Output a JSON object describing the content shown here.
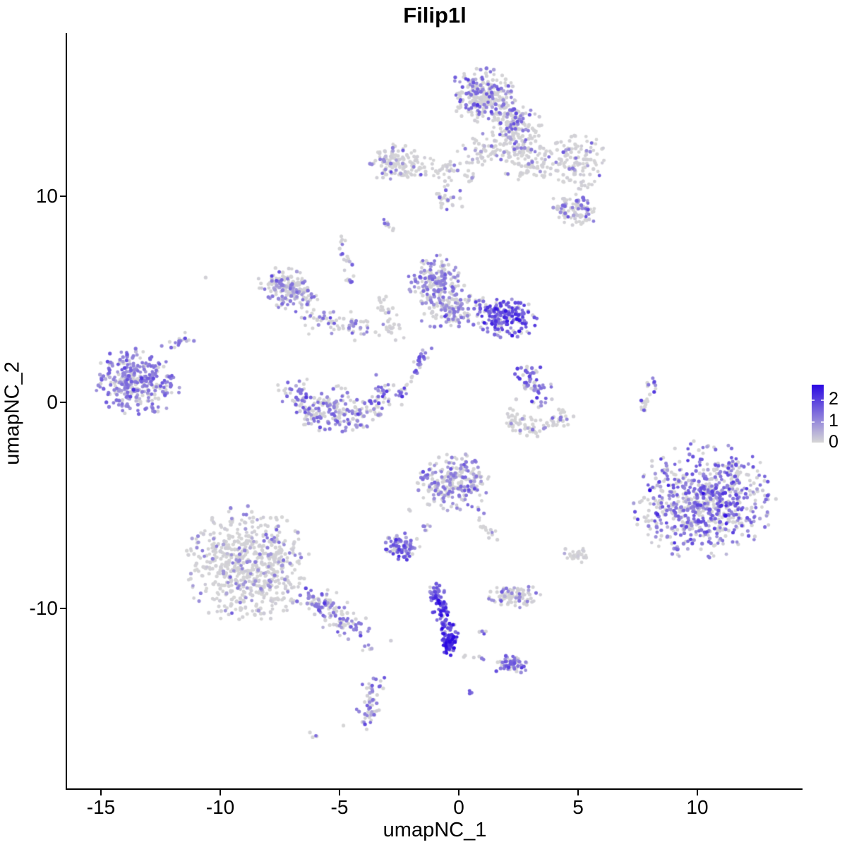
{
  "chart_data": {
    "type": "scatter",
    "subtype": "umap-feature-plot",
    "title": "Filip1l",
    "xlabel": "umapNC_1",
    "ylabel": "umapNC_2",
    "x_ticks": [
      -15,
      -10,
      -5,
      0,
      5,
      10
    ],
    "y_ticks": [
      10,
      0,
      -10
    ],
    "xlim": [
      -16.4,
      14.4
    ],
    "ylim": [
      -18.8,
      17.9
    ],
    "grid": false,
    "legend": {
      "position": "right",
      "ticks": [
        2,
        1,
        0
      ],
      "limit": 2.7
    },
    "color_scale": {
      "low": "#d6d6d6",
      "high": "#2b09e2"
    },
    "point_radius": 2.35,
    "clusters": [
      {
        "id": "top-main-a",
        "type": "blob",
        "cx": 1.0,
        "cy": 14.9,
        "rx": 1.35,
        "ry": 1.25,
        "rot": -35,
        "n": 270,
        "zero": 0.7,
        "t": [
          0.45,
          0.12
        ]
      },
      {
        "id": "top-main-b",
        "type": "blob",
        "cx": 2.35,
        "cy": 13.4,
        "rx": 1.05,
        "ry": 1.0,
        "rot": 0,
        "n": 140,
        "zero": 0.72,
        "t": [
          0.45,
          0.12
        ]
      },
      {
        "id": "top-main-tail",
        "type": "blob",
        "cx": 1.0,
        "cy": 12.3,
        "rx": 1.2,
        "ry": 0.7,
        "rot": 0,
        "n": 50,
        "zero": 0.8,
        "t": [
          0.4,
          0.1
        ]
      },
      {
        "id": "band-left",
        "type": "blob",
        "cx": -2.6,
        "cy": 11.6,
        "rx": 1.15,
        "ry": 0.85,
        "rot": 0,
        "n": 130,
        "zero": 0.86,
        "t": [
          0.4,
          0.1
        ]
      },
      {
        "id": "band-chain",
        "type": "line",
        "x1": -1.6,
        "y1": 11.4,
        "x2": 0.8,
        "y2": 11.2,
        "jitter": 0.28,
        "n": 45,
        "zero": 0.85,
        "t": [
          0.4,
          0.1
        ]
      },
      {
        "id": "band-mid-dots",
        "type": "blob",
        "cx": -0.5,
        "cy": 9.9,
        "rx": 0.8,
        "ry": 0.7,
        "rot": 0,
        "n": 25,
        "zero": 0.8,
        "t": [
          0.4,
          0.1
        ]
      },
      {
        "id": "band-right-a",
        "type": "blob",
        "cx": 2.9,
        "cy": 11.9,
        "rx": 1.35,
        "ry": 1.15,
        "rot": 0,
        "n": 130,
        "zero": 0.87,
        "t": [
          0.42,
          0.1
        ]
      },
      {
        "id": "band-right-b",
        "type": "blob",
        "cx": 5.0,
        "cy": 11.6,
        "rx": 1.15,
        "ry": 1.35,
        "rot": 0,
        "n": 115,
        "zero": 0.84,
        "t": [
          0.42,
          0.1
        ]
      },
      {
        "id": "band-right-lower",
        "type": "blob",
        "cx": 4.8,
        "cy": 9.35,
        "rx": 1.1,
        "ry": 0.72,
        "rot": -15,
        "n": 95,
        "zero": 0.7,
        "t": [
          0.45,
          0.12
        ]
      },
      {
        "id": "tiny-streak-upper",
        "type": "line",
        "x1": -3.1,
        "y1": 8.95,
        "x2": -2.75,
        "y2": 8.35,
        "jitter": 0.08,
        "n": 8,
        "zero": 0.7,
        "t": [
          0.45,
          0.1
        ]
      },
      {
        "id": "single-dot-left",
        "type": "blob",
        "cx": -10.6,
        "cy": 6.1,
        "rx": 0.05,
        "ry": 0.05,
        "rot": 0,
        "n": 1,
        "zero": 1,
        "t": [
          0,
          0
        ]
      },
      {
        "id": "midleft",
        "type": "blob",
        "cx": -7.15,
        "cy": 5.5,
        "rx": 1.25,
        "ry": 1.0,
        "rot": -25,
        "n": 175,
        "zero": 0.58,
        "t": [
          0.4,
          0.11
        ]
      },
      {
        "id": "midleft-arm",
        "type": "line",
        "x1": -6.3,
        "y1": 4.2,
        "x2": -3.8,
        "y2": 3.55,
        "jitter": 0.3,
        "n": 70,
        "zero": 0.62,
        "t": [
          0.42,
          0.12
        ]
      },
      {
        "id": "midleft-chain-up",
        "type": "line",
        "x1": -4.95,
        "y1": 7.8,
        "x2": -4.55,
        "y2": 5.7,
        "jitter": 0.14,
        "n": 22,
        "zero": 0.75,
        "t": [
          0.42,
          0.1
        ]
      },
      {
        "id": "center-top",
        "type": "blob",
        "cx": -0.95,
        "cy": 5.9,
        "rx": 1.1,
        "ry": 1.15,
        "rot": 0,
        "n": 170,
        "zero": 0.45,
        "t": [
          0.38,
          0.1
        ]
      },
      {
        "id": "center-mid",
        "type": "blob",
        "cx": -0.3,
        "cy": 4.5,
        "rx": 1.4,
        "ry": 0.95,
        "rot": 0,
        "n": 130,
        "zero": 0.6,
        "t": [
          0.4,
          0.11
        ]
      },
      {
        "id": "center-right-strong",
        "type": "blob",
        "cx": 1.95,
        "cy": 4.15,
        "rx": 1.35,
        "ry": 0.95,
        "rot": -15,
        "n": 190,
        "zero": 0.22,
        "t": [
          0.62,
          0.18
        ]
      },
      {
        "id": "center-left-rim",
        "type": "line",
        "x1": -3.3,
        "y1": 5.2,
        "x2": -2.6,
        "y2": 3.1,
        "jitter": 0.22,
        "n": 35,
        "zero": 0.85,
        "t": [
          0.4,
          0.1
        ]
      },
      {
        "id": "left-main",
        "type": "blob",
        "cx": -13.5,
        "cy": 1.0,
        "rx": 1.75,
        "ry": 1.5,
        "rot": -15,
        "n": 340,
        "zero": 0.3,
        "t": [
          0.42,
          0.12
        ]
      },
      {
        "id": "left-arm",
        "type": "line",
        "x1": -12.3,
        "y1": 2.4,
        "x2": -11.3,
        "y2": 3.3,
        "jitter": 0.18,
        "n": 16,
        "zero": 0.55,
        "t": [
          0.42,
          0.1
        ]
      },
      {
        "id": "bowl",
        "type": "arc",
        "cx": -4.95,
        "cy": 0.5,
        "rx": 1.8,
        "ry": 1.45,
        "a0": 170,
        "a1": 372,
        "jitter": 0.3,
        "n": 210,
        "zero": 0.5,
        "t": [
          0.45,
          0.13
        ]
      },
      {
        "id": "bowl-fill",
        "type": "blob",
        "cx": -5.0,
        "cy": 0.0,
        "rx": 1.3,
        "ry": 0.75,
        "rot": 0,
        "n": 70,
        "zero": 0.72,
        "t": [
          0.42,
          0.1
        ]
      },
      {
        "id": "sliver",
        "type": "line",
        "x1": -2.45,
        "y1": 0.35,
        "x2": -1.3,
        "y2": 2.5,
        "jitter": 0.12,
        "n": 40,
        "zero": 0.35,
        "t": [
          0.5,
          0.15
        ]
      },
      {
        "id": "rightcenter-diag",
        "type": "line",
        "x1": 2.75,
        "y1": 1.55,
        "x2": 3.55,
        "y2": -0.1,
        "jitter": 0.26,
        "n": 60,
        "zero": 0.32,
        "t": [
          0.5,
          0.15
        ]
      },
      {
        "id": "rightcenter-bowl",
        "type": "arc",
        "cx": 3.3,
        "cy": -0.5,
        "rx": 1.15,
        "ry": 0.75,
        "a0": 170,
        "a1": 368,
        "jitter": 0.22,
        "n": 85,
        "zero": 0.88,
        "t": [
          0.4,
          0.1
        ]
      },
      {
        "id": "right-sliver",
        "type": "line",
        "x1": 8.25,
        "y1": 1.3,
        "x2": 7.6,
        "y2": -0.5,
        "jitter": 0.09,
        "n": 22,
        "zero": 0.68,
        "t": [
          0.48,
          0.14
        ]
      },
      {
        "id": "right-main",
        "type": "blob",
        "cx": 10.3,
        "cy": -4.7,
        "rx": 2.85,
        "ry": 2.6,
        "rot": 25,
        "n": 720,
        "zero": 0.4,
        "t": [
          0.48,
          0.16
        ]
      },
      {
        "id": "center-lower",
        "type": "blob",
        "cx": -0.25,
        "cy": -3.9,
        "rx": 1.45,
        "ry": 1.35,
        "rot": 0,
        "n": 235,
        "zero": 0.55,
        "t": [
          0.4,
          0.12
        ]
      },
      {
        "id": "center-lower-tail",
        "type": "line",
        "x1": 0.95,
        "y1": -5.4,
        "x2": 1.45,
        "y2": -6.6,
        "jitter": 0.18,
        "n": 18,
        "zero": 0.55,
        "t": [
          0.42,
          0.12
        ]
      },
      {
        "id": "center-lower-west-dots",
        "type": "blob",
        "cx": -2.1,
        "cy": -5.2,
        "rx": 0.15,
        "ry": 0.15,
        "rot": 0,
        "n": 3,
        "zero": 0.6,
        "t": [
          0.45,
          0.1
        ]
      },
      {
        "id": "purple-knot",
        "type": "blob",
        "cx": -2.4,
        "cy": -7.0,
        "rx": 0.8,
        "ry": 0.62,
        "rot": -10,
        "n": 80,
        "zero": 0.22,
        "t": [
          0.52,
          0.17
        ]
      },
      {
        "id": "knot-bridge",
        "type": "line",
        "x1": -1.6,
        "y1": -6.2,
        "x2": -1.1,
        "y2": -5.6,
        "jitter": 0.12,
        "n": 6,
        "zero": 0.5,
        "t": [
          0.45,
          0.1
        ]
      },
      {
        "id": "bottomleft-main",
        "type": "blob",
        "cx": -8.9,
        "cy": -7.9,
        "rx": 2.45,
        "ry": 2.7,
        "rot": 15,
        "n": 650,
        "zero": 0.84,
        "t": [
          0.35,
          0.1
        ]
      },
      {
        "id": "bottomleft-arm",
        "type": "line",
        "x1": -6.3,
        "y1": -9.4,
        "x2": -4.25,
        "y2": -10.9,
        "jitter": 0.32,
        "n": 125,
        "zero": 0.55,
        "t": [
          0.42,
          0.12
        ]
      },
      {
        "id": "arm-to-streak-dots",
        "type": "line",
        "x1": -4.0,
        "y1": -11.4,
        "x2": -3.6,
        "y2": -13.0,
        "jitter": 0.15,
        "n": 5,
        "zero": 0.55,
        "t": [
          0.42,
          0.1
        ]
      },
      {
        "id": "small-gray-blob",
        "type": "blob",
        "cx": 4.9,
        "cy": -7.4,
        "rx": 0.5,
        "ry": 0.42,
        "rot": 0,
        "n": 26,
        "zero": 0.97,
        "t": [
          0.3,
          0.05
        ]
      },
      {
        "id": "small-horizontal",
        "type": "blob",
        "cx": 2.35,
        "cy": -9.4,
        "rx": 1.05,
        "ry": 0.55,
        "rot": 0,
        "n": 85,
        "zero": 0.72,
        "t": [
          0.38,
          0.1
        ]
      },
      {
        "id": "blue-streak",
        "type": "line",
        "x1": -0.88,
        "y1": -9.35,
        "x2": -0.38,
        "y2": -11.5,
        "jitter": 0.16,
        "bias": 0.85,
        "n": 85,
        "zero": 0.1,
        "t": [
          0.6,
          0.2
        ]
      },
      {
        "id": "blue-streak-knot",
        "type": "blob",
        "cx": -0.38,
        "cy": -11.75,
        "rx": 0.32,
        "ry": 0.5,
        "rot": 0,
        "n": 50,
        "zero": 0.05,
        "t": [
          0.8,
          0.13
        ]
      },
      {
        "id": "streak-top-knob",
        "type": "blob",
        "cx": -0.95,
        "cy": -9.15,
        "rx": 0.38,
        "ry": 0.35,
        "rot": 0,
        "n": 26,
        "zero": 0.15,
        "t": [
          0.55,
          0.15
        ]
      },
      {
        "id": "streak-side-dots",
        "type": "line",
        "x1": 0.45,
        "y1": -11.1,
        "x2": 1.1,
        "y2": -11.3,
        "jitter": 0.08,
        "n": 4,
        "zero": 0.5,
        "t": [
          0.5,
          0.1
        ]
      },
      {
        "id": "bottom-tri-blob",
        "type": "blob",
        "cx": 2.2,
        "cy": -12.75,
        "rx": 0.68,
        "ry": 0.5,
        "rot": 0,
        "n": 60,
        "zero": 0.3,
        "t": [
          0.5,
          0.14
        ]
      },
      {
        "id": "bridge-dots",
        "type": "line",
        "x1": 0.2,
        "y1": -12.3,
        "x2": 1.4,
        "y2": -12.5,
        "jitter": 0.1,
        "n": 7,
        "zero": 0.55,
        "t": [
          0.45,
          0.1
        ]
      },
      {
        "id": "bottom-streak",
        "type": "line",
        "x1": -3.45,
        "y1": -13.4,
        "x2": -3.85,
        "y2": -15.6,
        "jitter": 0.22,
        "n": 55,
        "zero": 0.48,
        "t": [
          0.45,
          0.12
        ]
      },
      {
        "id": "tiny-pair-sw",
        "type": "blob",
        "cx": -6.05,
        "cy": -16.15,
        "rx": 0.22,
        "ry": 0.12,
        "rot": -30,
        "n": 4,
        "zero": 0.5,
        "t": [
          0.45,
          0.1
        ]
      },
      {
        "id": "tiny-pair-s",
        "type": "blob",
        "cx": 0.5,
        "cy": -14.05,
        "rx": 0.18,
        "ry": 0.12,
        "rot": 0,
        "n": 3,
        "zero": 0.35,
        "t": [
          0.5,
          0.1
        ]
      },
      {
        "id": "single-dot-s",
        "type": "blob",
        "cx": -4.85,
        "cy": -15.7,
        "rx": 0.05,
        "ry": 0.05,
        "rot": 0,
        "n": 1,
        "zero": 1,
        "t": [
          0,
          0
        ]
      },
      {
        "id": "single-dot-streak-w",
        "type": "blob",
        "cx": -2.85,
        "cy": -11.6,
        "rx": 0.05,
        "ry": 0.05,
        "rot": 0,
        "n": 1,
        "zero": 1,
        "t": [
          0,
          0
        ]
      }
    ]
  }
}
